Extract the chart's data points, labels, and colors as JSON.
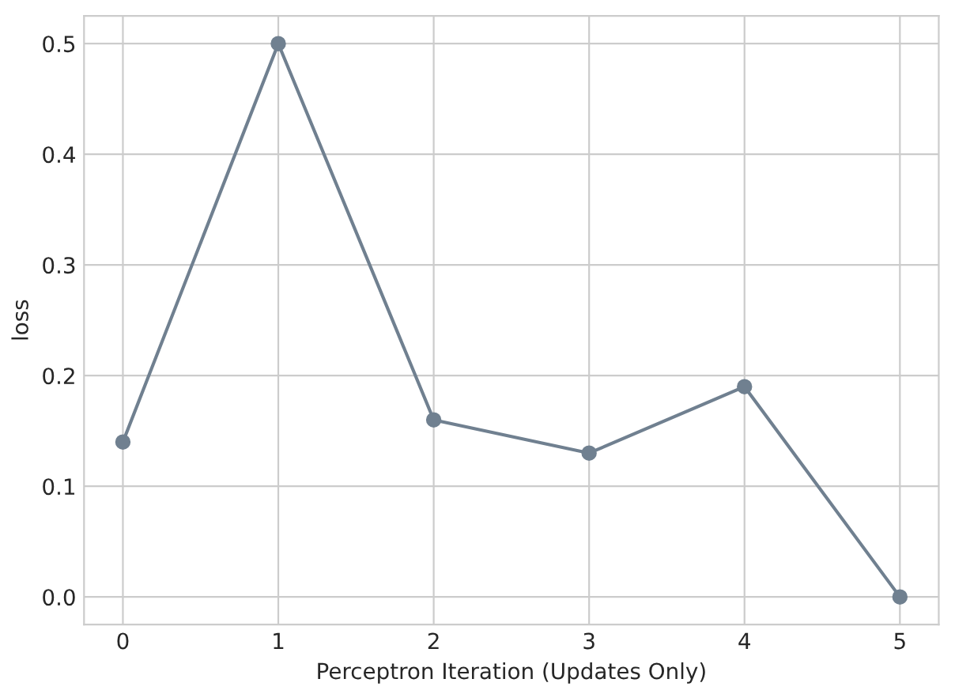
{
  "chart_data": {
    "type": "line",
    "xlabel": "Perceptron Iteration (Updates Only)",
    "ylabel": "loss",
    "x": [
      0,
      1,
      2,
      3,
      4,
      5
    ],
    "series": [
      {
        "color": "#708090",
        "values": [
          0.14,
          0.5,
          0.16,
          0.13,
          0.19,
          0.0
        ]
      }
    ],
    "xlim": [
      -0.25,
      5.25
    ],
    "xticks": [
      0,
      1,
      2,
      3,
      4,
      5
    ],
    "ylim": [
      -0.025,
      0.525
    ],
    "yticks": [
      {
        "value": 0,
        "label": "0.0"
      },
      {
        "value": 0.1,
        "label": "0.1"
      },
      {
        "value": 0.2,
        "label": "0.2"
      },
      {
        "value": 0.3,
        "label": "0.3"
      },
      {
        "value": 0.4,
        "label": "0.4"
      },
      {
        "value": 0.5,
        "label": "0.5"
      }
    ],
    "grid": true,
    "marker": "circle",
    "line_style": "solid"
  }
}
